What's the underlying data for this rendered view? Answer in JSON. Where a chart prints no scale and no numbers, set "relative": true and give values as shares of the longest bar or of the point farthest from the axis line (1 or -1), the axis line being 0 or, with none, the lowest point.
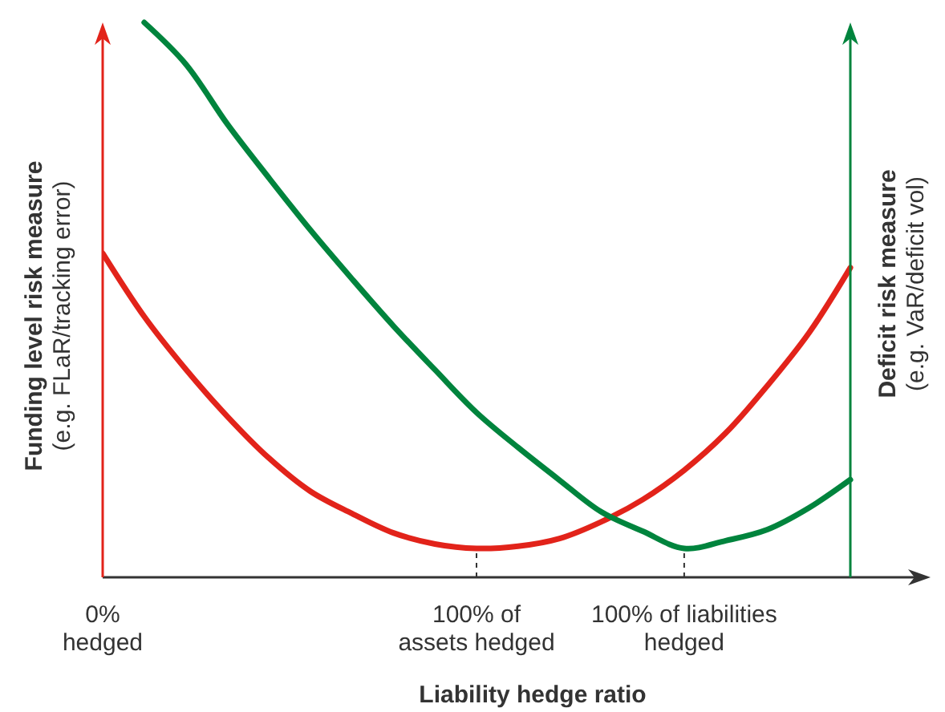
{
  "chart_data": {
    "type": "line",
    "relative": true,
    "xlabel": "Liability hedge ratio",
    "ylabel": "Funding level risk measure\n(e.g. FLaR/tracking error)",
    "y2label": "Deficit risk measure\n(e.g. VaR/deficit vol)",
    "categories": [
      "0%\nhedged",
      null,
      null,
      null,
      null,
      null,
      null,
      null,
      null,
      "100% of\nassets hedged",
      null,
      null,
      null,
      null,
      "100% of liabilities\nhedged",
      null,
      null,
      null,
      null
    ],
    "line_style": "solid",
    "series": [
      {
        "color": "#e2231a",
        "values": [
          0.584,
          0.47,
          0.375,
          0.29,
          0.215,
          0.155,
          0.115,
          0.08,
          0.06,
          0.052,
          0.056,
          0.07,
          0.1,
          0.14,
          0.193,
          0.26,
          0.345,
          0.44,
          0.558
        ]
      },
      {
        "color": "#00843d",
        "axis": "y2",
        "values": [
          null,
          1,
          0.925,
          0.817,
          0.72,
          0.626,
          0.538,
          0.453,
          0.374,
          0.297,
          0.234,
          0.175,
          0.118,
          0.083,
          0.052,
          0.066,
          0.086,
          0.125,
          0.176
        ]
      }
    ]
  }
}
